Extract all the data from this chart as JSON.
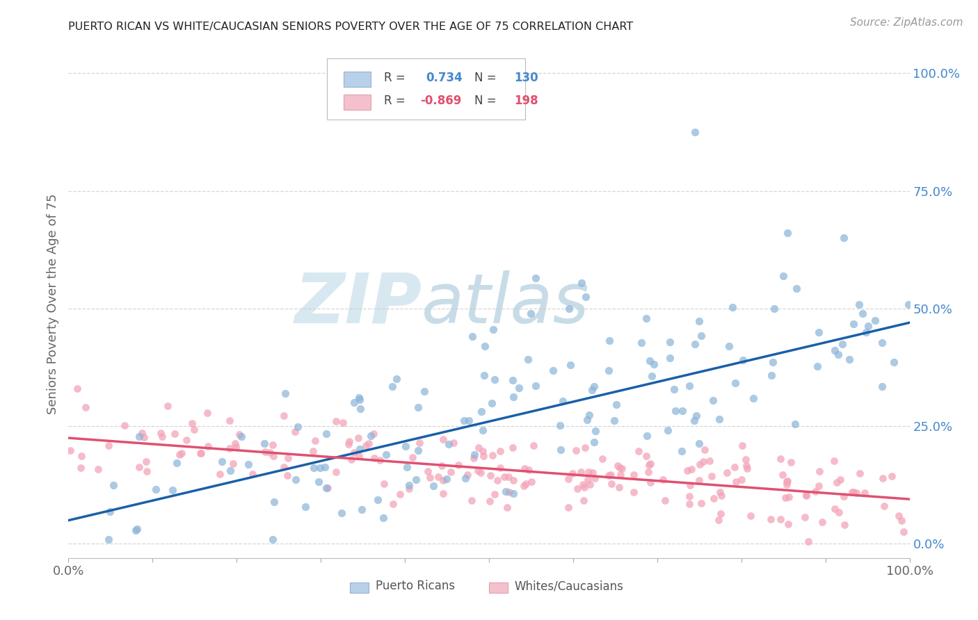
{
  "title": "PUERTO RICAN VS WHITE/CAUCASIAN SENIORS POVERTY OVER THE AGE OF 75 CORRELATION CHART",
  "source": "Source: ZipAtlas.com",
  "ylabel": "Seniors Poverty Over the Age of 75",
  "xlim": [
    0,
    1
  ],
  "ylim": [
    -0.03,
    1.05
  ],
  "y_ticks_right": [
    0.0,
    0.25,
    0.5,
    0.75,
    1.0
  ],
  "y_tick_labels_right": [
    "0.0%",
    "25.0%",
    "50.0%",
    "75.0%",
    "100.0%"
  ],
  "blue_R": "0.734",
  "blue_N": "130",
  "pink_R": "-0.869",
  "pink_N": "198",
  "blue_dot_color": "#8ab4d8",
  "pink_dot_color": "#f4a4b8",
  "blue_line_color": "#1a5fa8",
  "pink_line_color": "#e05070",
  "title_color": "#222222",
  "source_color": "#999999",
  "right_tick_color": "#4488cc",
  "legend_box_blue": "#b8d0ea",
  "legend_box_pink": "#f4c0cc",
  "watermark_color": "#d8e8f0",
  "background_color": "#ffffff",
  "grid_color": "#cccccc",
  "blue_line_start_y": 0.05,
  "blue_line_end_y": 0.47,
  "pink_line_start_y": 0.225,
  "pink_line_end_y": 0.095
}
